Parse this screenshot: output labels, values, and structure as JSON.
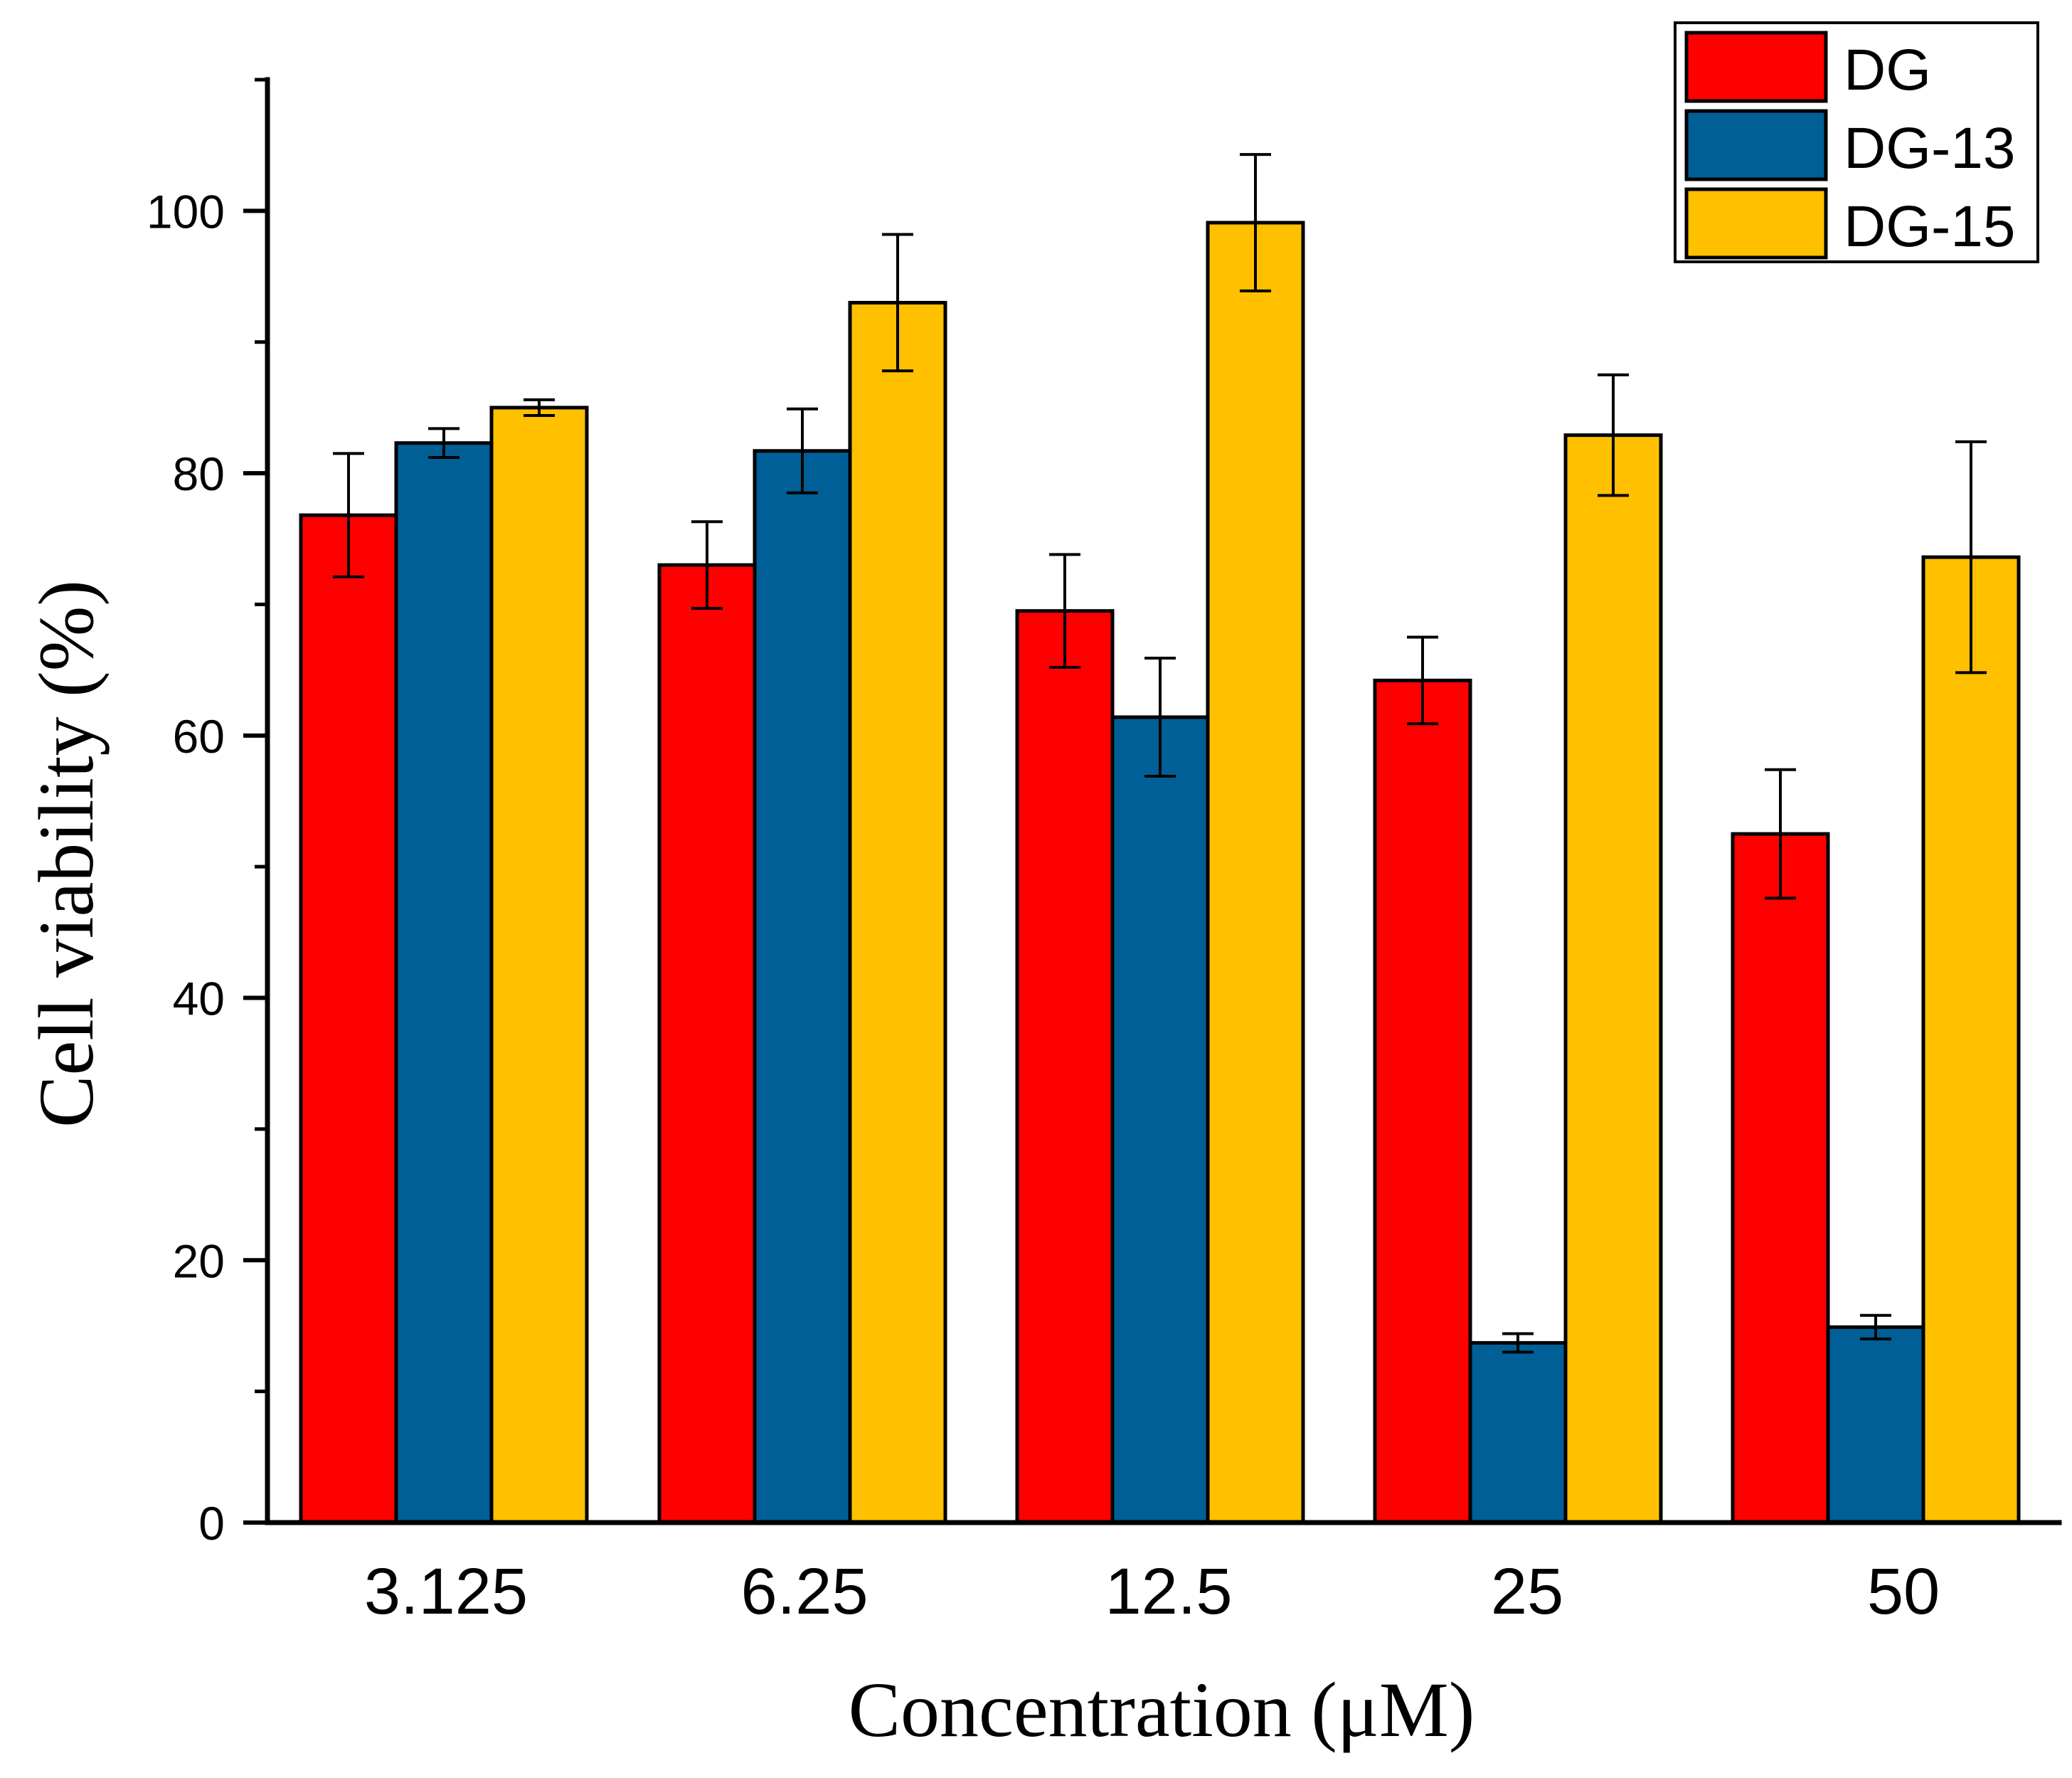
{
  "chart_data": {
    "type": "bar",
    "title": "",
    "xlabel": "Concentration (μM)",
    "ylabel": "Cell viability (%)",
    "categories": [
      "3.125",
      "6.25",
      "12.5",
      "25",
      "50"
    ],
    "ylim": [
      0,
      110
    ],
    "yticks": [
      0,
      20,
      40,
      60,
      80,
      100
    ],
    "ytick_labels": [
      "0",
      "20",
      "40",
      "60",
      "80",
      "100"
    ],
    "grid": false,
    "legend_position": "top-right",
    "error_bars": true,
    "series": [
      {
        "name": "DG",
        "color": "#ff0000",
        "values": [
          76.8,
          73.0,
          69.5,
          64.2,
          52.5
        ],
        "errors": [
          4.7,
          3.3,
          4.3,
          3.3,
          4.9
        ]
      },
      {
        "name": "DG-13",
        "color": "#005f96",
        "values": [
          82.3,
          81.7,
          61.4,
          13.7,
          14.9
        ],
        "errors": [
          1.1,
          3.2,
          4.5,
          0.7,
          0.9
        ]
      },
      {
        "name": "DG-15",
        "color": "#ffc000",
        "values": [
          85.0,
          93.0,
          99.1,
          82.9,
          73.6
        ],
        "errors": [
          0.6,
          5.2,
          5.2,
          4.6,
          8.8
        ]
      }
    ]
  }
}
